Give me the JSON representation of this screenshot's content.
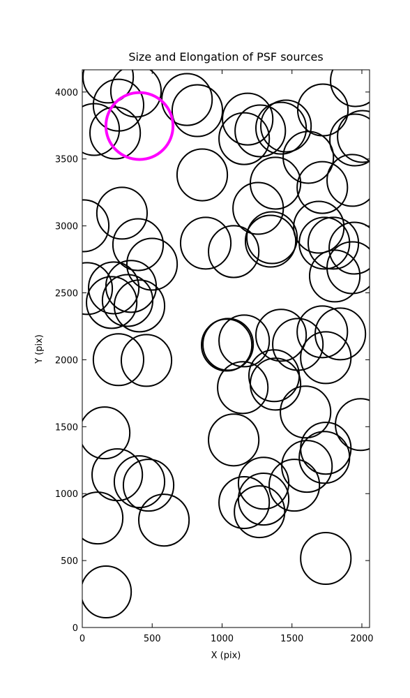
{
  "chart_data": {
    "type": "scatter",
    "marker": "ellipse",
    "title": "Size and Elongation of PSF sources",
    "xlabel": "X (pix)",
    "ylabel": "Y (pix)",
    "xlim": [
      0,
      2055
    ],
    "ylim": [
      0,
      4166
    ],
    "xticks": [
      0,
      500,
      1000,
      1500,
      2000
    ],
    "yticks": [
      0,
      500,
      1000,
      1500,
      2000,
      2500,
      3000,
      3500,
      4000
    ],
    "series": [
      {
        "color": "#000000",
        "width": 360,
        "height": 386,
        "x": [
          185,
          384,
          259,
          85,
          235,
          749,
          823,
          1183,
          1273,
          1158,
          1457,
          1422,
          1721,
          1956,
          2006,
          1951,
          1617,
          858,
          1382,
          1258,
          1717,
          1931,
          10,
          284,
          399,
          499,
          883,
          1083,
          1357,
          1347,
          1692,
          1732,
          1796,
          1946,
          1931,
          1806,
          35,
          225,
          210,
          349,
          324,
          409,
          1033,
          1043,
          1158,
          1422,
          1542,
          1717,
          1846,
          1742,
          259,
          459,
          1148,
          1372,
          1382,
          1597,
          1991,
          160,
          1083,
          250,
          409,
          474,
          1297,
          1607,
          1517,
          1742,
          1732,
          1158,
          1268,
          1297,
          110,
          584,
          170,
          1742
        ],
        "y": [
          4112,
          4007,
          3902,
          3720,
          3694,
          3944,
          3861,
          3798,
          3710,
          3652,
          3746,
          3730,
          3866,
          4085,
          3668,
          3642,
          3512,
          3381,
          3319,
          3131,
          3287,
          3340,
          3001,
          3095,
          2860,
          2714,
          2871,
          2808,
          2912,
          2886,
          2990,
          2871,
          2871,
          2834,
          2688,
          2626,
          2532,
          2537,
          2428,
          2548,
          2443,
          2402,
          2110,
          2115,
          2141,
          2183,
          2115,
          2209,
          2193,
          2016,
          2001,
          1995,
          1792,
          1881,
          1818,
          1610,
          1516,
          1454,
          1401,
          1141,
          1089,
          1063,
          1078,
          1204,
          1063,
          1339,
          1271,
          933,
          865,
          959,
          818,
          802,
          266,
          516
        ]
      },
      {
        "color": "#ff00ff",
        "width": 480,
        "height": 500,
        "x": [
          409
        ],
        "y": [
          3746
        ]
      }
    ]
  }
}
